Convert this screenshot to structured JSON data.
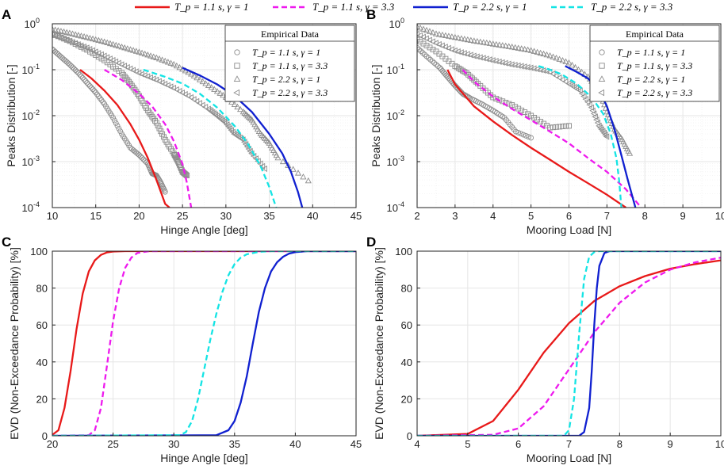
{
  "legend": {
    "items": [
      {
        "label": "T_p = 1.1 s, γ = 1",
        "color": "#e81919",
        "dash": "solid"
      },
      {
        "label": "T_p = 1.1 s, γ = 3.3",
        "color": "#ee1aee",
        "dash": "dashed"
      },
      {
        "label": "T_p = 2.2 s, γ = 1",
        "color": "#1020d0",
        "dash": "solid"
      },
      {
        "label": "T_p = 2.2 s, γ = 3.3",
        "color": "#14e4e4",
        "dash": "dashed"
      }
    ]
  },
  "colors": {
    "empirical": "#8c8c8c",
    "grid": "#e6e6e6"
  },
  "chart_data": [
    {
      "panel_label": "A",
      "type": "line",
      "scale": "log",
      "xlabel": "Hinge Angle [deg]",
      "ylabel": "Peaks Distribution [-]",
      "xlim": [
        10,
        45
      ],
      "ylim": [
        0.0001,
        1
      ],
      "xticks": [
        10,
        15,
        20,
        25,
        30,
        35,
        40,
        45
      ],
      "yticks": [
        {
          "v": 1,
          "b": "10",
          "e": "0"
        },
        {
          "v": 0.1,
          "b": "10",
          "e": "-1"
        },
        {
          "v": 0.01,
          "b": "10",
          "e": "-2"
        },
        {
          "v": 0.001,
          "b": "10",
          "e": "-3"
        },
        {
          "v": 0.0001,
          "b": "10",
          "e": "-4"
        }
      ],
      "inset_legend": {
        "title": "Empirical Data",
        "items": [
          {
            "marker": "circle",
            "label": "T_p = 1.1 s, γ = 1"
          },
          {
            "marker": "square",
            "label": "T_p = 1.1 s, γ = 3.3"
          },
          {
            "marker": "triangle-up",
            "label": "T_p = 2.2 s, γ = 1"
          },
          {
            "marker": "triangle-left",
            "label": "T_p = 2.2 s, γ = 3.3"
          }
        ]
      },
      "fit_series": [
        {
          "name": "T_p = 1.1 s, γ = 1",
          "x": [
            13.2,
            14.5,
            16,
            17.5,
            19,
            20,
            21,
            22,
            22.5,
            23,
            23.5
          ],
          "y": [
            0.1,
            0.065,
            0.035,
            0.017,
            0.0065,
            0.003,
            0.0012,
            0.0004,
            0.00022,
            0.00012,
            0.0001
          ]
        },
        {
          "name": "T_p = 1.1 s, γ = 3.3",
          "x": [
            16,
            18,
            20,
            21.5,
            23,
            24,
            25,
            25.5,
            26
          ],
          "y": [
            0.1,
            0.06,
            0.03,
            0.016,
            0.0065,
            0.0028,
            0.0009,
            0.00035,
            0.0001
          ]
        },
        {
          "name": "T_p = 2.2 s, γ = 1",
          "x": [
            25,
            27,
            29,
            31,
            33,
            35,
            36.5,
            37.5,
            38.3,
            38.8
          ],
          "y": [
            0.11,
            0.075,
            0.048,
            0.027,
            0.012,
            0.004,
            0.0015,
            0.0006,
            0.00022,
            0.0001
          ]
        },
        {
          "name": "T_p = 2.2 s, γ = 3.3",
          "x": [
            20.5,
            23,
            25,
            27,
            29,
            31,
            32.5,
            34,
            35,
            35.8
          ],
          "y": [
            0.1,
            0.07,
            0.05,
            0.03,
            0.015,
            0.006,
            0.0025,
            0.0008,
            0.00028,
            0.0001
          ]
        }
      ],
      "empirical_series": [
        {
          "name": "T_p = 1.1 s, γ = 1",
          "marker": "circle",
          "x": [
            10,
            11,
            12,
            13,
            14,
            15,
            16,
            17,
            18,
            19,
            20,
            21,
            21.5,
            22,
            22.5,
            23
          ],
          "y": [
            0.28,
            0.19,
            0.13,
            0.085,
            0.052,
            0.032,
            0.018,
            0.009,
            0.004,
            0.002,
            0.0014,
            0.0009,
            0.00055,
            0.0005,
            0.00035,
            0.00022
          ]
        },
        {
          "name": "T_p = 1.1 s, γ = 3.3",
          "marker": "square",
          "x": [
            10,
            12,
            14,
            16,
            18,
            19,
            20,
            21,
            22,
            23,
            24,
            24.5,
            25,
            25.5
          ],
          "y": [
            0.6,
            0.42,
            0.27,
            0.16,
            0.085,
            0.05,
            0.027,
            0.013,
            0.007,
            0.003,
            0.0015,
            0.001,
            0.0006,
            0.0005
          ]
        },
        {
          "name": "T_p = 2.2 s, γ = 1",
          "marker": "triangle-up",
          "x": [
            10,
            12,
            14,
            16,
            18,
            20,
            22,
            24,
            26,
            28,
            30,
            32,
            33,
            34,
            35,
            36,
            39.5
          ],
          "y": [
            0.75,
            0.62,
            0.5,
            0.4,
            0.31,
            0.24,
            0.18,
            0.13,
            0.08,
            0.045,
            0.025,
            0.012,
            0.008,
            0.004,
            0.0025,
            0.0012,
            0.00038
          ]
        },
        {
          "name": "T_p = 2.2 s, γ = 3.3",
          "marker": "triangle-left",
          "x": [
            10,
            12,
            14,
            16,
            18,
            20,
            22,
            24,
            26,
            28,
            29,
            30,
            31,
            32,
            33,
            34.5
          ],
          "y": [
            0.58,
            0.42,
            0.3,
            0.2,
            0.13,
            0.085,
            0.06,
            0.04,
            0.025,
            0.014,
            0.01,
            0.007,
            0.004,
            0.003,
            0.0015,
            0.0007
          ]
        }
      ]
    },
    {
      "panel_label": "B",
      "type": "line",
      "scale": "log",
      "xlabel": "Mooring Load [N]",
      "ylabel": "Peaks Distribution [-]",
      "xlim": [
        2,
        10
      ],
      "ylim": [
        0.0001,
        1
      ],
      "xticks": [
        2,
        3,
        4,
        5,
        6,
        7,
        8,
        9,
        10
      ],
      "yticks": [
        {
          "v": 1,
          "b": "10",
          "e": "0"
        },
        {
          "v": 0.1,
          "b": "10",
          "e": "-1"
        },
        {
          "v": 0.01,
          "b": "10",
          "e": "-2"
        },
        {
          "v": 0.001,
          "b": "10",
          "e": "-3"
        },
        {
          "v": 0.0001,
          "b": "10",
          "e": "-4"
        }
      ],
      "inset_legend": {
        "title": "Empirical Data",
        "items": [
          {
            "marker": "circle",
            "label": "T_p = 1.1 s, γ = 1"
          },
          {
            "marker": "square",
            "label": "T_p = 1.1 s, γ = 3.3"
          },
          {
            "marker": "triangle-up",
            "label": "T_p = 2.2 s, γ = 1"
          },
          {
            "marker": "triangle-left",
            "label": "T_p = 2.2 s, γ = 3.3"
          }
        ]
      },
      "fit_series": [
        {
          "name": "T_p = 1.1 s, γ = 1",
          "x": [
            2.8,
            3,
            3.5,
            4,
            4.5,
            5,
            5.5,
            6,
            6.5,
            7,
            7.5
          ],
          "y": [
            0.1,
            0.048,
            0.016,
            0.0075,
            0.0038,
            0.002,
            0.0011,
            0.0006,
            0.00034,
            0.00019,
            0.0001
          ]
        },
        {
          "name": "T_p = 1.1 s, γ = 3.3",
          "x": [
            3.2,
            3.5,
            4,
            4.5,
            5,
            5.5,
            6,
            6.5,
            7,
            7.5,
            7.9
          ],
          "y": [
            0.1,
            0.055,
            0.026,
            0.014,
            0.008,
            0.0045,
            0.0025,
            0.0012,
            0.0006,
            0.00025,
            0.0001
          ]
        },
        {
          "name": "T_p = 2.2 s, γ = 1",
          "x": [
            5.9,
            6.2,
            6.5,
            6.8,
            7,
            7.2,
            7.4,
            7.55,
            7.65,
            7.75
          ],
          "y": [
            0.12,
            0.09,
            0.065,
            0.035,
            0.016,
            0.005,
            0.0012,
            0.0004,
            0.0002,
            0.0001
          ]
        },
        {
          "name": "T_p = 2.2 s, γ = 3.3",
          "x": [
            5.2,
            5.5,
            5.8,
            6.2,
            6.6,
            6.9,
            7.1,
            7.25,
            7.32,
            7.38
          ],
          "y": [
            0.12,
            0.1,
            0.08,
            0.05,
            0.025,
            0.011,
            0.004,
            0.0012,
            0.0004,
            0.0001
          ]
        }
      ],
      "empirical_series": [
        {
          "name": "T_p = 1.1 s, γ = 1",
          "marker": "circle",
          "x": [
            2,
            2.3,
            2.6,
            2.8,
            3,
            3.2,
            3.4,
            3.7,
            4,
            4.3,
            4.6,
            5
          ],
          "y": [
            0.3,
            0.18,
            0.11,
            0.07,
            0.045,
            0.03,
            0.024,
            0.018,
            0.013,
            0.009,
            0.0045,
            0.0033
          ]
        },
        {
          "name": "T_p = 1.1 s, γ = 3.3",
          "marker": "square",
          "x": [
            2,
            2.5,
            3,
            3.3,
            3.6,
            4,
            4.5,
            5,
            5.5,
            6
          ],
          "y": [
            0.45,
            0.25,
            0.12,
            0.085,
            0.05,
            0.025,
            0.017,
            0.01,
            0.0055,
            0.006
          ]
        },
        {
          "name": "T_p = 2.2 s, γ = 1",
          "marker": "triangle-up",
          "x": [
            2,
            2.5,
            3,
            3.5,
            4,
            4.5,
            5,
            5.5,
            6,
            6.5,
            6.8,
            7,
            7.2,
            7.4,
            7.6
          ],
          "y": [
            0.85,
            0.6,
            0.5,
            0.42,
            0.36,
            0.31,
            0.26,
            0.2,
            0.14,
            0.07,
            0.035,
            0.012,
            0.005,
            0.003,
            0.0015
          ]
        },
        {
          "name": "T_p = 2.2 s, γ = 3.3",
          "marker": "triangle-left",
          "x": [
            2,
            2.5,
            3,
            3.5,
            4,
            4.5,
            5,
            5.5,
            6,
            6.3,
            6.6,
            6.8,
            7
          ],
          "y": [
            0.6,
            0.38,
            0.26,
            0.2,
            0.16,
            0.13,
            0.11,
            0.09,
            0.05,
            0.035,
            0.015,
            0.006,
            0.0035
          ]
        }
      ]
    },
    {
      "panel_label": "C",
      "type": "line",
      "scale": "linear",
      "xlabel": "Hinge Angle [deg]",
      "ylabel": "EVD (Non-Exceedance Probability) [%]",
      "xlim": [
        20,
        45
      ],
      "ylim": [
        0,
        100
      ],
      "xticks": [
        20,
        25,
        30,
        35,
        40,
        45
      ],
      "yticks": [
        0,
        20,
        40,
        60,
        80,
        100
      ],
      "series": [
        {
          "name": "T_p = 1.1 s, γ = 1",
          "x": [
            20,
            20.5,
            21,
            21.5,
            22,
            22.5,
            23,
            23.5,
            24,
            24.5,
            25,
            26,
            45
          ],
          "y": [
            0.5,
            3,
            15,
            35,
            58,
            77,
            89,
            95,
            98,
            99.3,
            99.8,
            100,
            100
          ]
        },
        {
          "name": "T_p = 1.1 s, γ = 3.3",
          "x": [
            20,
            23,
            23.5,
            24,
            24.5,
            25,
            25.5,
            26,
            26.5,
            27,
            28,
            45
          ],
          "y": [
            0,
            0.3,
            3,
            15,
            38,
            62,
            80,
            91,
            96.5,
            99,
            100,
            100
          ]
        },
        {
          "name": "T_p = 2.2 s, γ = 1",
          "x": [
            20,
            33.5,
            34.5,
            35,
            35.5,
            36,
            36.5,
            37,
            37.5,
            38,
            38.5,
            39,
            39.5,
            40,
            41,
            45
          ],
          "y": [
            0,
            0.3,
            3,
            8,
            18,
            32,
            50,
            67,
            80,
            89,
            94,
            97,
            98.7,
            99.5,
            100,
            100
          ]
        },
        {
          "name": "T_p = 2.2 s, γ = 3.3",
          "x": [
            20,
            30.5,
            31,
            31.5,
            32,
            32.5,
            33,
            33.5,
            34,
            34.5,
            35,
            35.5,
            36,
            37,
            38,
            45
          ],
          "y": [
            0,
            0.3,
            2,
            8,
            20,
            36,
            52,
            66,
            78,
            87,
            93,
            96.5,
            98.3,
            99.6,
            100,
            100
          ]
        }
      ]
    },
    {
      "panel_label": "D",
      "type": "line",
      "scale": "linear",
      "xlabel": "Mooring Load [N]",
      "ylabel": "EVD (Non-Exceedance Probability) [%]",
      "xlim": [
        4,
        10
      ],
      "ylim": [
        0,
        100
      ],
      "xticks": [
        4,
        5,
        6,
        7,
        8,
        9,
        10
      ],
      "yticks": [
        0,
        20,
        40,
        60,
        80,
        100
      ],
      "series": [
        {
          "name": "T_p = 1.1 s, γ = 1",
          "x": [
            4,
            5,
            5.5,
            6,
            6.5,
            7,
            7.5,
            8,
            8.5,
            9,
            9.5,
            10
          ],
          "y": [
            0,
            1,
            8,
            25,
            45,
            61,
            73,
            81,
            86.5,
            90.5,
            93,
            95
          ]
        },
        {
          "name": "T_p = 1.1 s, γ = 3.3",
          "x": [
            4,
            5.5,
            6,
            6.5,
            7,
            7.5,
            8,
            8.5,
            9,
            9.5,
            10
          ],
          "y": [
            0,
            0.5,
            4,
            16,
            36,
            56,
            72,
            83,
            90,
            94,
            96.5
          ]
        },
        {
          "name": "T_p = 2.2 s, γ = 1",
          "x": [
            4,
            7.2,
            7.3,
            7.4,
            7.45,
            7.5,
            7.55,
            7.6,
            7.7,
            7.8,
            10
          ],
          "y": [
            0,
            0,
            2,
            15,
            35,
            60,
            80,
            92,
            99,
            100,
            100
          ]
        },
        {
          "name": "T_p = 2.2 s, γ = 3.3",
          "x": [
            4,
            6.9,
            7,
            7.1,
            7.2,
            7.3,
            7.4,
            7.5,
            7.6,
            10
          ],
          "y": [
            0,
            0,
            3,
            20,
            55,
            85,
            97,
            99.5,
            100,
            100
          ]
        }
      ]
    }
  ]
}
